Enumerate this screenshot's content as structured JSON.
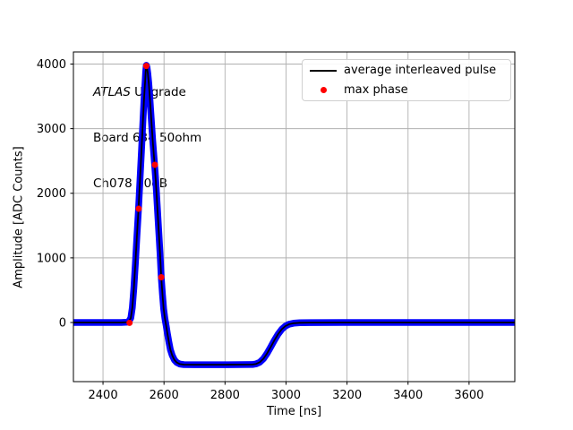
{
  "colors": {
    "background": "#ffffff",
    "grid": "#b0b0b0",
    "spine": "#000000",
    "pulse_band": "#0000ff",
    "pulse_line": "#000000",
    "max_phase": "#ff0000"
  },
  "chart_data": {
    "type": "line",
    "title": "",
    "xlabel": "Time [ns]",
    "ylabel": "Amplitude [ADC Counts]",
    "xlim": [
      2303,
      3750
    ],
    "ylim": [
      -915,
      4187
    ],
    "xticks": [
      2400,
      2600,
      2800,
      3000,
      3200,
      3400,
      3600
    ],
    "yticks": [
      0,
      1000,
      2000,
      3000,
      4000
    ],
    "grid": true,
    "legend_position": "upper right",
    "annotation": {
      "line1_italic": "ATLAS",
      "line1_rest": " Upgrade",
      "line2": "Board 634 50ohm",
      "line3": "Ch078 20dB"
    },
    "series": [
      {
        "name": "average interleaved pulse",
        "type": "line",
        "color": "#000000",
        "band_color": "#0000ff",
        "points": [
          [
            2303,
            0
          ],
          [
            2400,
            0
          ],
          [
            2460,
            0
          ],
          [
            2480,
            5
          ],
          [
            2486,
            25
          ],
          [
            2491,
            70
          ],
          [
            2496,
            230
          ],
          [
            2501,
            530
          ],
          [
            2506,
            910
          ],
          [
            2511,
            1330
          ],
          [
            2516,
            1730
          ],
          [
            2521,
            2190
          ],
          [
            2526,
            2650
          ],
          [
            2531,
            3130
          ],
          [
            2535,
            3490
          ],
          [
            2538,
            3730
          ],
          [
            2540,
            3880
          ],
          [
            2542,
            3980
          ],
          [
            2544,
            3955
          ],
          [
            2547,
            3855
          ],
          [
            2550,
            3700
          ],
          [
            2554,
            3450
          ],
          [
            2558,
            3160
          ],
          [
            2563,
            2810
          ],
          [
            2568,
            2510
          ],
          [
            2573,
            2190
          ],
          [
            2578,
            1790
          ],
          [
            2583,
            1390
          ],
          [
            2587,
            1060
          ],
          [
            2591,
            700
          ],
          [
            2595,
            430
          ],
          [
            2599,
            210
          ],
          [
            2603,
            60
          ],
          [
            2607,
            -50
          ],
          [
            2611,
            -165
          ],
          [
            2616,
            -300
          ],
          [
            2621,
            -420
          ],
          [
            2627,
            -510
          ],
          [
            2634,
            -580
          ],
          [
            2642,
            -620
          ],
          [
            2652,
            -643
          ],
          [
            2665,
            -651
          ],
          [
            2700,
            -653
          ],
          [
            2800,
            -653
          ],
          [
            2890,
            -650
          ],
          [
            2902,
            -640
          ],
          [
            2914,
            -614
          ],
          [
            2926,
            -560
          ],
          [
            2938,
            -478
          ],
          [
            2950,
            -378
          ],
          [
            2962,
            -274
          ],
          [
            2974,
            -180
          ],
          [
            2986,
            -105
          ],
          [
            2998,
            -56
          ],
          [
            3010,
            -26
          ],
          [
            3025,
            -11
          ],
          [
            3045,
            -4
          ],
          [
            3080,
            -1
          ],
          [
            3200,
            0
          ],
          [
            3500,
            0
          ],
          [
            3750,
            0
          ]
        ]
      },
      {
        "name": "max phase",
        "type": "scatter",
        "color": "#ff0000",
        "points": [
          [
            2487,
            -5
          ],
          [
            2517,
            1760
          ],
          [
            2542,
            3970
          ],
          [
            2570,
            2440
          ],
          [
            2591,
            700
          ]
        ]
      }
    ]
  }
}
